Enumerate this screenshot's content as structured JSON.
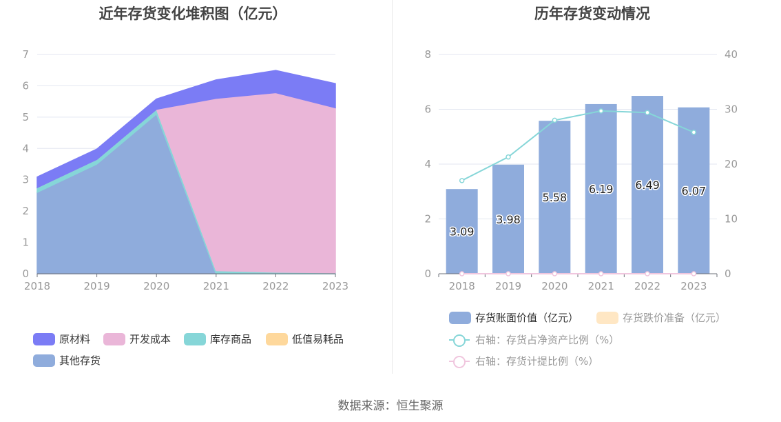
{
  "colors": {
    "raw_materials": "#7b7cf5",
    "development_cost": "#eab6d8",
    "goods_in_stock": "#86d6d8",
    "low_value": "#fed89c",
    "other": "#8facdc",
    "bar": "#8facdc",
    "provision": "#ffe7c4",
    "line_ratio": "#86d6d8",
    "line_provision": "#f0c6de",
    "grid": "#e3e6f0",
    "axis_text": "#999999"
  },
  "chart_data": [
    {
      "type": "area",
      "stacked": true,
      "title": "近年存货变化堆积图（亿元）",
      "x": [
        "2018",
        "2019",
        "2020",
        "2021",
        "2022",
        "2023"
      ],
      "ylim": [
        0,
        7
      ],
      "yticks": [
        "0",
        "1",
        "2",
        "3",
        "4",
        "5",
        "6",
        "7"
      ],
      "series": [
        {
          "name": "其他存货",
          "key": "other",
          "values": [
            2.6,
            3.5,
            5.1,
            0.0,
            0.0,
            0.0
          ]
        },
        {
          "name": "库存商品",
          "key": "goods_in_stock",
          "values": [
            0.15,
            0.15,
            0.15,
            0.1,
            0.05,
            0.03
          ]
        },
        {
          "name": "低值易耗品",
          "key": "low_value",
          "values": [
            0.0,
            0.0,
            0.0,
            0.0,
            0.0,
            0.0
          ]
        },
        {
          "name": "开发成本",
          "key": "development_cost",
          "values": [
            0.0,
            0.0,
            0.0,
            5.5,
            5.73,
            5.27
          ]
        },
        {
          "name": "原材料",
          "key": "raw_materials",
          "values": [
            0.34,
            0.33,
            0.33,
            0.59,
            0.71,
            0.77
          ]
        }
      ],
      "legend": [
        "原材料",
        "开发成本",
        "库存商品",
        "低值易耗品",
        "其他存货"
      ],
      "legend_keys": [
        "raw_materials",
        "development_cost",
        "goods_in_stock",
        "low_value",
        "other"
      ]
    },
    {
      "type": "bar+line",
      "title": "历年存货变动情况",
      "x": [
        "2018",
        "2019",
        "2020",
        "2021",
        "2022",
        "2023"
      ],
      "ylim_left": [
        0,
        8
      ],
      "ylim_right": [
        0,
        40
      ],
      "yticks_left": [
        "0",
        "2",
        "4",
        "6",
        "8"
      ],
      "yticks_right": [
        "0",
        "10",
        "20",
        "30",
        "40"
      ],
      "bars": {
        "name": "存货账面价值（亿元）",
        "values": [
          3.09,
          3.98,
          5.58,
          6.19,
          6.49,
          6.07
        ],
        "labels": [
          "3.09",
          "3.98",
          "5.58",
          "6.19",
          "6.49",
          "6.07"
        ]
      },
      "provision_bars": {
        "name": "存货跌价准备（亿元）",
        "values": [
          0,
          0,
          0,
          0,
          0,
          0
        ]
      },
      "lines": [
        {
          "name": "右轴：存货占净资产比例（%）",
          "key": "line_ratio",
          "values": [
            17.0,
            21.3,
            28.0,
            29.7,
            29.4,
            25.8
          ]
        },
        {
          "name": "右轴：存货计提比例（%）",
          "key": "line_provision",
          "values": [
            0,
            0,
            0,
            0,
            0,
            0
          ]
        }
      ]
    }
  ],
  "footer": {
    "source": "数据来源：恒生聚源"
  }
}
